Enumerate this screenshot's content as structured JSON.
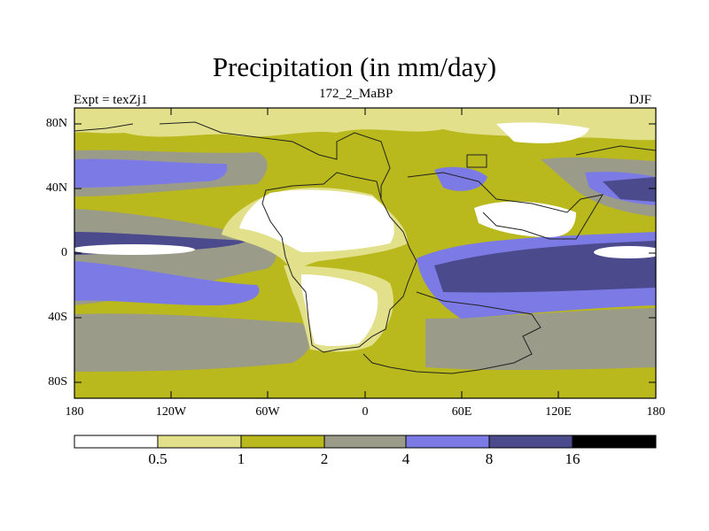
{
  "title": "Precipitation (in mm/day)",
  "left_label": "Expt = texZj1",
  "center_label": "172_2_MaBP",
  "right_label": "DJF",
  "y_ticks": [
    "80N",
    "40N",
    "0",
    "40S",
    "80S"
  ],
  "x_ticks": [
    "180",
    "120W",
    "60W",
    "0",
    "60E",
    "120E",
    "180"
  ],
  "colorbar": {
    "labels": [
      "0.5",
      "1",
      "2",
      "4",
      "8",
      "16"
    ],
    "colors": [
      "#ffffff",
      "#e2e08a",
      "#b9b81c",
      "#9b9b8a",
      "#7c7be6",
      "#4a4a8c",
      "#000000"
    ]
  }
}
